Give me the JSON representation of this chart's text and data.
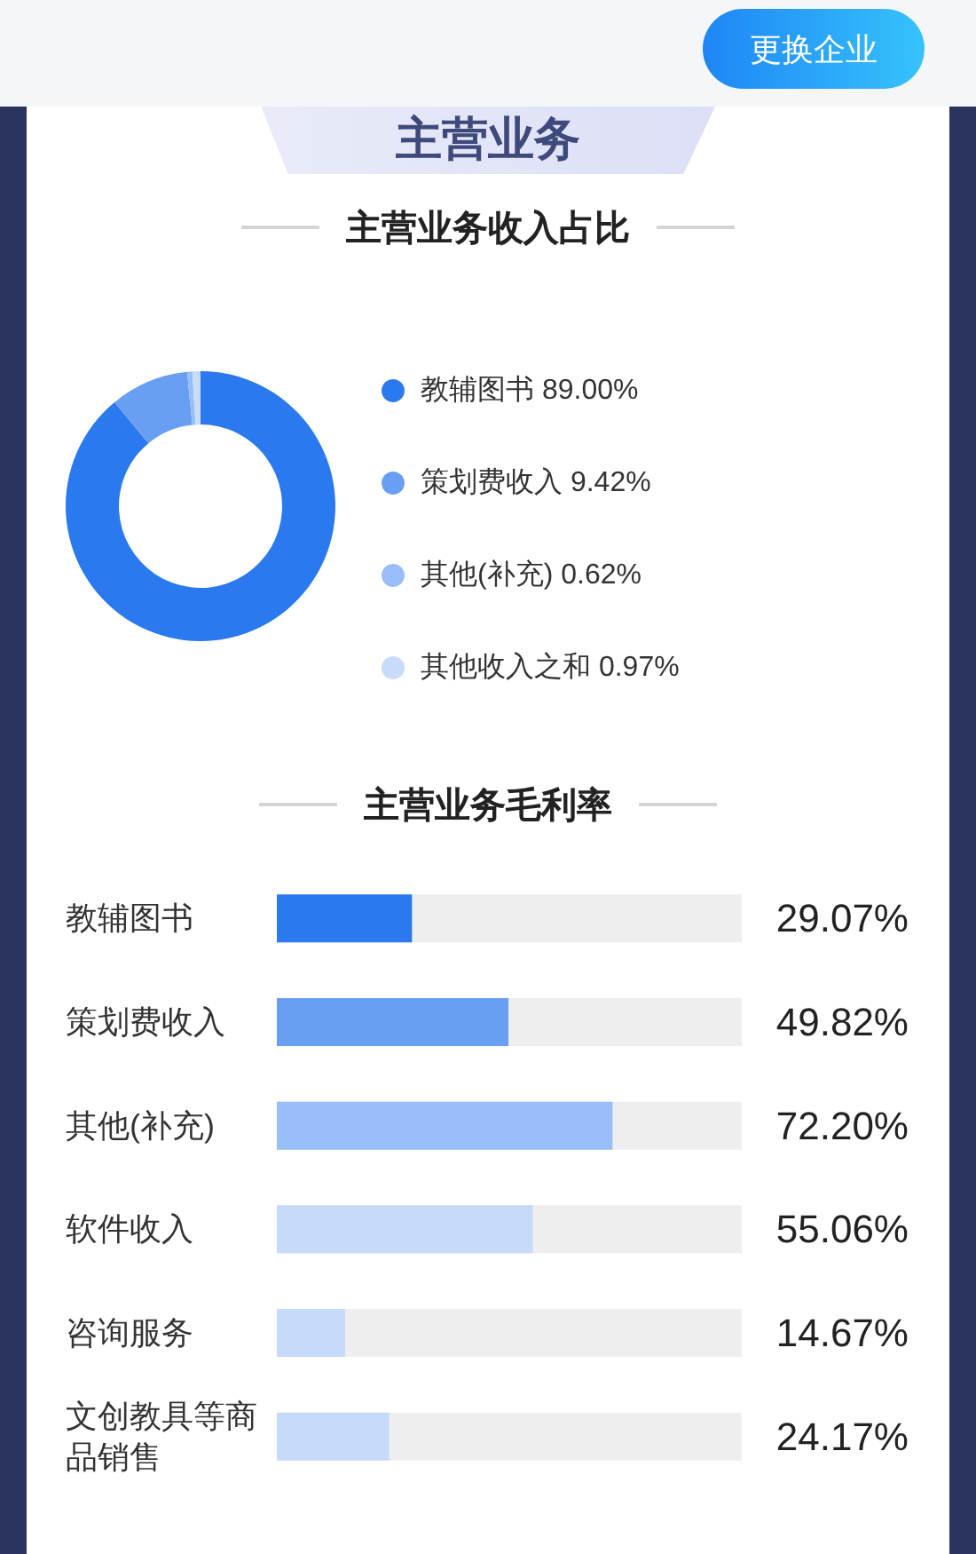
{
  "chart_data": [
    {
      "type": "donut",
      "title": "主营业务",
      "subtitle": "主营业务收入占比",
      "categories": [
        "教辅图书",
        "策划费收入",
        "其他(补充)",
        "其他收入之和"
      ],
      "values": [
        89.0,
        9.42,
        0.62,
        0.97
      ],
      "value_labels": [
        "89.00%",
        "9.42%",
        "0.62%",
        "0.97%"
      ],
      "colors": [
        "#2a79ef",
        "#689ff2",
        "#97bef8",
        "#c8dbf8"
      ],
      "legend": "right",
      "annotations": [
        "更换企业"
      ]
    },
    {
      "type": "bar",
      "orientation": "horizontal",
      "title": "主营业务毛利率",
      "categories": [
        "教辅图书",
        "策划费收入",
        "其他(补充)",
        "软件收入",
        "咨询服务",
        "文创教具等商品销售"
      ],
      "values": [
        29.07,
        49.82,
        72.2,
        55.06,
        14.67,
        24.17
      ],
      "value_labels": [
        "29.07%",
        "49.82%",
        "72.20%",
        "55.06%",
        "14.67%",
        "24.17%"
      ],
      "colors": [
        "#2a79ef",
        "#689ff2",
        "#97bef8",
        "#c6daf9",
        "#c6daf9",
        "#c6daf9"
      ],
      "xlim": [
        0,
        100
      ],
      "tick_labels": "y"
    }
  ]
}
